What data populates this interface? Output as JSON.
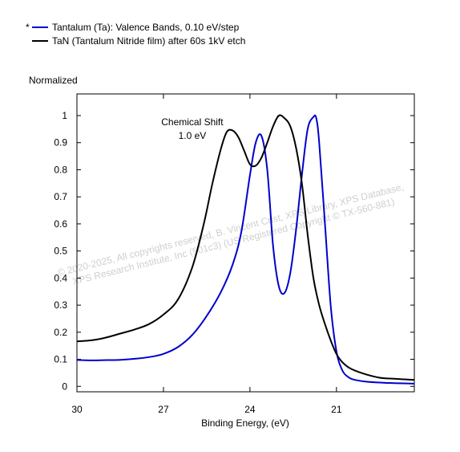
{
  "chart_data": {
    "type": "line",
    "title": "",
    "xlabel": "Binding Energy, (eV)",
    "ylabel": "Normalized",
    "xlim": [
      30,
      18.3
    ],
    "ylim": [
      -0.02,
      1.08
    ],
    "x_reversed": true,
    "grid": false,
    "legend_position": "top-left",
    "legend_marker": "*",
    "xticks": [
      {
        "value": 30,
        "label": "30"
      },
      {
        "value": 27,
        "label": "27"
      },
      {
        "value": 24,
        "label": "24"
      },
      {
        "value": 21,
        "label": "21"
      }
    ],
    "yticks": [
      {
        "value": 0,
        "label": "0"
      },
      {
        "value": 0.1,
        "label": "0.1"
      },
      {
        "value": 0.2,
        "label": "0.2"
      },
      {
        "value": 0.3,
        "label": "0.3"
      },
      {
        "value": 0.4,
        "label": "0.4"
      },
      {
        "value": 0.5,
        "label": "0.5"
      },
      {
        "value": 0.6,
        "label": "0.6"
      },
      {
        "value": 0.7,
        "label": "0.7"
      },
      {
        "value": 0.8,
        "label": "0.8"
      },
      {
        "value": 0.9,
        "label": "0.9"
      },
      {
        "value": 1,
        "label": "1"
      }
    ],
    "annotations": [
      {
        "lines": [
          "Chemical Shift",
          "1.0 eV"
        ],
        "x": 26.0,
        "y": 0.965
      }
    ],
    "watermark": [
      "©  2020-2025,  All copyrights reserved,  B. Vincent Crist,  XPS Library, XPS Database,",
      "XPS Research Institute, Inc (501c3)   (US Registered Copyright © TX-560-881)"
    ],
    "series": [
      {
        "name": "Tantalum (Ta): Valence Bands, 0.10 eV/step",
        "color": "#0000cc",
        "x": [
          30.2,
          29.5,
          29.0,
          28.5,
          28.0,
          27.5,
          27.0,
          26.5,
          26.0,
          25.5,
          25.0,
          24.6,
          24.3,
          24.0,
          23.8,
          23.6,
          23.4,
          23.2,
          23.0,
          22.8,
          22.6,
          22.4,
          22.2,
          22.0,
          21.8,
          21.7,
          21.6,
          21.4,
          21.2,
          21.0,
          20.8,
          20.6,
          20.4,
          20.0,
          19.5,
          19.0,
          18.3
        ],
        "y": [
          0.098,
          0.096,
          0.097,
          0.098,
          0.102,
          0.108,
          0.12,
          0.145,
          0.19,
          0.26,
          0.35,
          0.45,
          0.57,
          0.78,
          0.9,
          0.925,
          0.8,
          0.52,
          0.37,
          0.345,
          0.42,
          0.58,
          0.78,
          0.95,
          0.995,
          0.99,
          0.9,
          0.6,
          0.3,
          0.13,
          0.06,
          0.035,
          0.025,
          0.018,
          0.014,
          0.012,
          0.01
        ]
      },
      {
        "name": "TaN (Tantalum Nitride film) after 60s 1kV etch",
        "color": "#000000",
        "x": [
          30.2,
          29.5,
          29.0,
          28.5,
          28.0,
          27.5,
          27.0,
          26.5,
          26.0,
          25.6,
          25.3,
          25.0,
          24.8,
          24.6,
          24.4,
          24.2,
          24.0,
          23.8,
          23.6,
          23.4,
          23.2,
          23.0,
          22.8,
          22.6,
          22.4,
          22.2,
          22.0,
          21.8,
          21.6,
          21.4,
          21.2,
          21.0,
          20.8,
          20.5,
          20.0,
          19.5,
          19.0,
          18.3
        ],
        "y": [
          0.165,
          0.17,
          0.18,
          0.195,
          0.21,
          0.23,
          0.265,
          0.32,
          0.44,
          0.6,
          0.75,
          0.88,
          0.94,
          0.945,
          0.92,
          0.87,
          0.82,
          0.815,
          0.845,
          0.9,
          0.96,
          1.0,
          0.99,
          0.96,
          0.88,
          0.75,
          0.56,
          0.4,
          0.3,
          0.23,
          0.17,
          0.12,
          0.09,
          0.065,
          0.045,
          0.032,
          0.028,
          0.024
        ]
      }
    ]
  }
}
